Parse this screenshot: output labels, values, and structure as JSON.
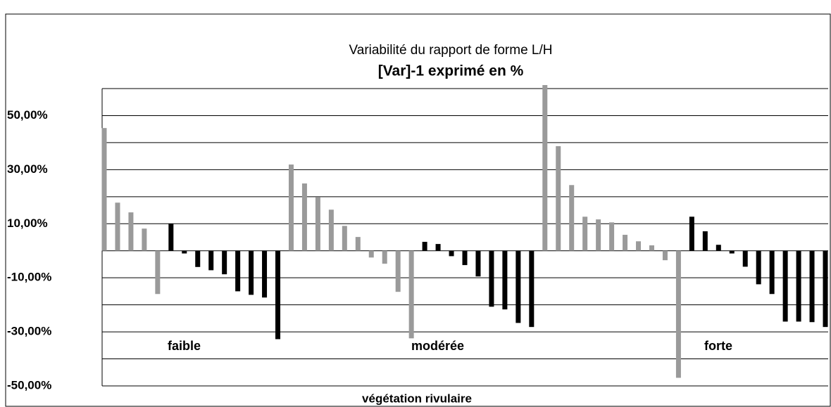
{
  "chart_data": {
    "type": "bar",
    "title": "Variabilité du rapport de forme L/H",
    "subtitle": "[Var]-1  exprimé en %",
    "x_label": "végétation rivulaire",
    "annotations": [
      "faible",
      "modérée",
      "forte"
    ],
    "categories": [
      null,
      null,
      null,
      null,
      null,
      null,
      null,
      null,
      null,
      null,
      null,
      null,
      null,
      null,
      null,
      null,
      null,
      null,
      null,
      null,
      null,
      null,
      null,
      null,
      null,
      null,
      null,
      null,
      null,
      null,
      null,
      null,
      null,
      null,
      null,
      null,
      null,
      null,
      null,
      null,
      null,
      null,
      null,
      null,
      null,
      null,
      null,
      null,
      null,
      null,
      null,
      null,
      null,
      null,
      null
    ],
    "values": [
      45.4,
      17.8,
      14.2,
      8.2,
      -16,
      10,
      -1,
      -6,
      -7.2,
      -8.7,
      -15,
      -16.3,
      -17.3,
      -32.7,
      31.9,
      24.9,
      19.9,
      15.2,
      9.2,
      5.1,
      -2.5,
      -4.8,
      -15.2,
      -32.4,
      3.3,
      2.5,
      -2,
      -5.3,
      -9.5,
      -20.7,
      -21.7,
      -26.7,
      -28.2,
      61.3,
      38.7,
      24.3,
      12.6,
      11.6,
      10.5,
      5.9,
      3.5,
      2,
      -3.5,
      -47,
      12.6,
      7.2,
      2.2,
      -1,
      -5.9,
      -12.4,
      -16,
      -26.2,
      -26.2,
      -26.4,
      -28.2
    ],
    "colors": [
      "#9a9a9a",
      "#9a9a9a",
      "#9a9a9a",
      "#9a9a9a",
      "#9a9a9a",
      "#000000",
      "#000000",
      "#000000",
      "#000000",
      "#000000",
      "#000000",
      "#000000",
      "#000000",
      "#000000",
      "#9a9a9a",
      "#9a9a9a",
      "#9a9a9a",
      "#9a9a9a",
      "#9a9a9a",
      "#9a9a9a",
      "#9a9a9a",
      "#9a9a9a",
      "#9a9a9a",
      "#9a9a9a",
      "#000000",
      "#000000",
      "#000000",
      "#000000",
      "#000000",
      "#000000",
      "#000000",
      "#000000",
      "#000000",
      "#9a9a9a",
      "#9a9a9a",
      "#9a9a9a",
      "#9a9a9a",
      "#9a9a9a",
      "#9a9a9a",
      "#9a9a9a",
      "#9a9a9a",
      "#9a9a9a",
      "#9a9a9a",
      "#9a9a9a",
      "#000000",
      "#000000",
      "#000000",
      "#000000",
      "#000000",
      "#000000",
      "#000000",
      "#000000",
      "#000000",
      "#000000",
      "#000000"
    ],
    "ylim": [
      -50,
      60
    ],
    "yticks": [
      {
        "value": 50,
        "label": "50,00%"
      },
      {
        "value": 30,
        "label": "30,00%"
      },
      {
        "value": 10,
        "label": "10,00%"
      },
      {
        "value": -10,
        "label": "-10,00%"
      },
      {
        "value": -30,
        "label": "-30,00%"
      },
      {
        "value": -50,
        "label": "-50,00%"
      }
    ],
    "minor_yticks": [
      60,
      40,
      20,
      0,
      -20,
      -40
    ],
    "grid": true
  }
}
